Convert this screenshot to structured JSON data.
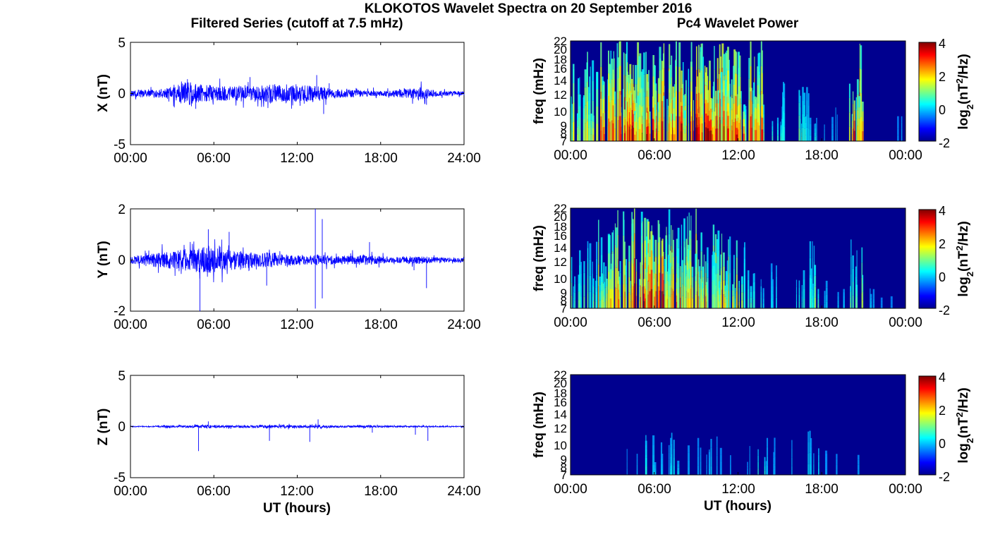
{
  "figure": {
    "title": "KLOKOTOS Wavelet Spectra on 20 September 2016",
    "left_column_title": "Filtered Series (cutoff at 7.5 mHz)",
    "right_column_title": "Pc4 Wavelet Power",
    "xlabel": "UT (hours)"
  },
  "colors": {
    "trace": "#0000ff",
    "spectrogram_background": "#00008f",
    "colormap": "jet"
  },
  "chart_data": [
    {
      "type": "line",
      "component": "X",
      "ylabel": "X (nT)",
      "ylim": [
        -5,
        5
      ],
      "yticks": [
        "5",
        "0",
        "-5"
      ],
      "xlim": [
        0,
        24
      ],
      "xticks": [
        "00:00",
        "06:00",
        "12:00",
        "18:00",
        "24:00"
      ],
      "series": [
        {
          "x": [
            0,
            1,
            2,
            3,
            4,
            5,
            6,
            7,
            8,
            9,
            10,
            11,
            12,
            13,
            14,
            15,
            16,
            17,
            18,
            19,
            20,
            21,
            22,
            23,
            24
          ],
          "amplitude": [
            0.3,
            0.4,
            0.4,
            0.6,
            1.2,
            0.9,
            0.8,
            0.7,
            0.8,
            0.7,
            0.9,
            0.8,
            0.8,
            0.9,
            0.6,
            0.4,
            0.4,
            0.3,
            0.3,
            0.3,
            0.5,
            0.6,
            0.3,
            0.2,
            0.2
          ]
        }
      ],
      "spikes": [
        {
          "x": 4.1,
          "y": 1.4
        },
        {
          "x": 4.7,
          "y": -1.5
        },
        {
          "x": 8.6,
          "y": 1.6
        },
        {
          "x": 12.2,
          "y": -1.2
        },
        {
          "x": 13.4,
          "y": 1.8
        },
        {
          "x": 13.9,
          "y": -2.0
        },
        {
          "x": 14.3,
          "y": 1.0
        },
        {
          "x": 21.3,
          "y": -1.1
        }
      ]
    },
    {
      "type": "line",
      "component": "Y",
      "ylabel": "Y (nT)",
      "ylim": [
        -2,
        2
      ],
      "yticks": [
        "2",
        "0",
        "-2"
      ],
      "xlim": [
        0,
        24
      ],
      "xticks": [
        "00:00",
        "06:00",
        "12:00",
        "18:00",
        "24:00"
      ],
      "series": [
        {
          "x": [
            0,
            1,
            2,
            3,
            4,
            5,
            6,
            7,
            8,
            9,
            10,
            11,
            12,
            13,
            14,
            15,
            16,
            17,
            18,
            19,
            20,
            21,
            22,
            23,
            24
          ],
          "amplitude": [
            0.15,
            0.2,
            0.3,
            0.35,
            0.45,
            0.5,
            0.5,
            0.4,
            0.35,
            0.3,
            0.3,
            0.25,
            0.2,
            0.2,
            0.2,
            0.15,
            0.2,
            0.2,
            0.15,
            0.1,
            0.15,
            0.15,
            0.1,
            0.1,
            0.1
          ]
        }
      ],
      "spikes": [
        {
          "x": 5.0,
          "y": -2.0
        },
        {
          "x": 5.6,
          "y": 1.2
        },
        {
          "x": 7.1,
          "y": 1.1
        },
        {
          "x": 9.8,
          "y": -1.0
        },
        {
          "x": 13.3,
          "y": 2.0
        },
        {
          "x": 13.3,
          "y": -1.9
        },
        {
          "x": 13.8,
          "y": 1.6
        },
        {
          "x": 13.8,
          "y": -1.5
        },
        {
          "x": 17.2,
          "y": 0.7
        },
        {
          "x": 20.4,
          "y": -0.4
        },
        {
          "x": 21.3,
          "y": -1.1
        }
      ]
    },
    {
      "type": "line",
      "component": "Z",
      "ylabel": "Z (nT)",
      "ylim": [
        -5,
        5
      ],
      "yticks": [
        "5",
        "0",
        "-5"
      ],
      "xlim": [
        0,
        24
      ],
      "xticks": [
        "00:00",
        "06:00",
        "12:00",
        "18:00",
        "24:00"
      ],
      "series": [
        {
          "x": [
            0,
            1,
            2,
            3,
            4,
            5,
            6,
            7,
            8,
            9,
            10,
            11,
            12,
            13,
            14,
            15,
            16,
            17,
            18,
            19,
            20,
            21,
            22,
            23,
            24
          ],
          "amplitude": [
            0.05,
            0.05,
            0.08,
            0.1,
            0.1,
            0.15,
            0.15,
            0.12,
            0.12,
            0.12,
            0.15,
            0.15,
            0.12,
            0.15,
            0.12,
            0.1,
            0.1,
            0.12,
            0.08,
            0.08,
            0.08,
            0.08,
            0.06,
            0.05,
            0.05
          ]
        }
      ],
      "spikes": [
        {
          "x": 4.9,
          "y": -2.4
        },
        {
          "x": 5.6,
          "y": 0.5
        },
        {
          "x": 10.0,
          "y": -1.4
        },
        {
          "x": 12.9,
          "y": -1.5
        },
        {
          "x": 13.5,
          "y": 0.7
        },
        {
          "x": 17.4,
          "y": -0.6
        },
        {
          "x": 20.5,
          "y": -0.8
        },
        {
          "x": 21.4,
          "y": -1.4
        }
      ]
    },
    {
      "type": "heatmap",
      "component": "X",
      "ylabel": "freq (mHz)",
      "xlim": [
        0,
        24
      ],
      "xticks": [
        "00:00",
        "06:00",
        "12:00",
        "18:00",
        "00:00"
      ],
      "ylim": [
        7,
        22
      ],
      "yticks": [
        "7",
        "8",
        "9",
        "10",
        "12",
        "14",
        "16",
        "18",
        "20",
        "22"
      ],
      "colorbar": {
        "label": "log2(nT^2/Hz)",
        "range": [
          -2,
          4
        ],
        "ticks": [
          "4",
          "2",
          "0",
          "-2"
        ]
      },
      "activity": [
        0.5,
        0.6,
        0.7,
        0.8,
        1.0,
        1.0,
        0.9,
        0.9,
        1.0,
        1.0,
        1.0,
        0.9,
        0.8,
        0.8,
        0.5,
        0.3,
        0.3,
        0.2,
        0.1,
        0.1,
        0.8,
        0.1,
        0.05,
        0.05
      ]
    },
    {
      "type": "heatmap",
      "component": "Y",
      "ylabel": "freq (mHz)",
      "xlim": [
        0,
        24
      ],
      "xticks": [
        "00:00",
        "06:00",
        "12:00",
        "18:00",
        "00:00"
      ],
      "ylim": [
        7,
        22
      ],
      "yticks": [
        "7",
        "8",
        "9",
        "10",
        "12",
        "14",
        "16",
        "18",
        "20",
        "22"
      ],
      "colorbar": {
        "label": "log2(nT^2/Hz)",
        "range": [
          -2,
          4
        ],
        "ticks": [
          "4",
          "2",
          "0",
          "-2"
        ]
      },
      "activity": [
        0.3,
        0.4,
        0.6,
        0.7,
        0.9,
        1.0,
        0.9,
        0.8,
        0.7,
        0.8,
        0.6,
        0.5,
        0.4,
        0.3,
        0.2,
        0.2,
        0.2,
        0.4,
        0.1,
        0.1,
        0.4,
        0.1,
        0.05,
        0.05
      ]
    },
    {
      "type": "heatmap",
      "component": "Z",
      "ylabel": "freq (mHz)",
      "xlim": [
        0,
        24
      ],
      "xticks": [
        "00:00",
        "06:00",
        "12:00",
        "18:00",
        "00:00"
      ],
      "ylim": [
        7,
        22
      ],
      "yticks": [
        "7",
        "8",
        "9",
        "10",
        "12",
        "14",
        "16",
        "18",
        "20",
        "22"
      ],
      "colorbar": {
        "label": "log2(nT^2/Hz)",
        "range": [
          -2,
          4
        ],
        "ticks": [
          "4",
          "2",
          "0",
          "-2"
        ]
      },
      "activity": [
        0.0,
        0.0,
        0.0,
        0.0,
        0.1,
        0.2,
        0.1,
        0.15,
        0.15,
        0.1,
        0.1,
        0.1,
        0.1,
        0.25,
        0.1,
        0.1,
        0.1,
        0.15,
        0.05,
        0.05,
        0.05,
        0.0,
        0.0,
        0.0
      ]
    }
  ]
}
